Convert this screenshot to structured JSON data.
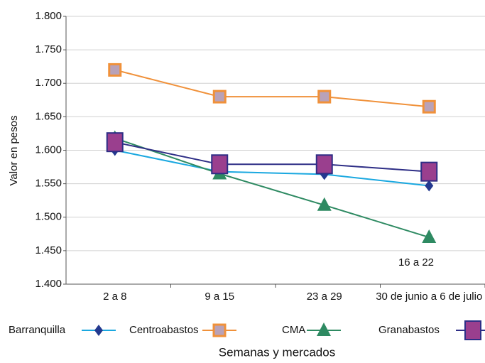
{
  "chart_data": {
    "type": "line",
    "y_label": "Valor en pesos",
    "x_label": "Semanas y mercados",
    "annotation": "16 a 22",
    "categories": [
      "2 a 8",
      "9 a 15",
      "23 a 29",
      "30 de junio a 6 de julio"
    ],
    "series": [
      {
        "name": "Barranquilla",
        "color": "#1aa8e0",
        "marker": "diamond",
        "marker_color": "#23398f",
        "values": [
          1600,
          1568,
          1564,
          1547
        ]
      },
      {
        "name": "Centroabastos",
        "color": "#f0913a",
        "marker": "square",
        "marker_color": "#b9a2b8",
        "values": [
          1720,
          1680,
          1680,
          1665
        ]
      },
      {
        "name": "CMA",
        "color": "#2e8a62",
        "marker": "triangle",
        "marker_color": "#2e8a62",
        "values": [
          1618,
          1565,
          1518,
          1470
        ]
      },
      {
        "name": "Granabastos",
        "color": "#2e2e86",
        "marker": "bigsquare",
        "marker_color": "#9a3f8e",
        "values": [
          1612,
          1579,
          1579,
          1568
        ]
      }
    ],
    "ylim": [
      1400,
      1800
    ],
    "yticks": [
      {
        "value": 1400,
        "label": "1.400"
      },
      {
        "value": 1450,
        "label": "1.450"
      },
      {
        "value": 1500,
        "label": "1.500"
      },
      {
        "value": 1550,
        "label": "1.550"
      },
      {
        "value": 1600,
        "label": "1.600"
      },
      {
        "value": 1650,
        "label": "1.650"
      },
      {
        "value": 1700,
        "label": "1.700"
      },
      {
        "value": 1750,
        "label": "1.750"
      },
      {
        "value": 1800,
        "label": "1.800"
      }
    ],
    "grid": true
  }
}
